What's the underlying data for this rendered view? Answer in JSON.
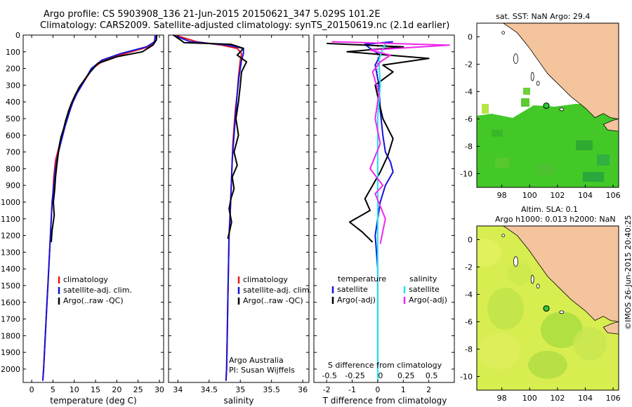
{
  "header": {
    "title_line1": "Argo profile: CS 5903908_136 21-Jun-2015 20150621_347 5.029S 101.2E",
    "title_line2": "Climatology: CARS2009. Satellite-adjusted climatology: synTS_20150619.nc (2.1d earlier)"
  },
  "colors": {
    "climatology": "#e8141c",
    "satellite": "#1414d8",
    "argo": "#000000",
    "salinity_sat": "#1ee6ee",
    "salinity_argo": "#ee28ee",
    "land": "#f4c49c",
    "sst_green": "#44c828",
    "sla_yellow": "#d8ee50"
  },
  "chart_data": [
    {
      "type": "line",
      "name": "temperature-panel",
      "xlabel": "temperature (deg C)",
      "ylabel": "",
      "xlim": [
        -2,
        31
      ],
      "ylim": [
        2080,
        0
      ],
      "xticks": [
        0,
        5,
        10,
        15,
        20,
        25,
        30
      ],
      "yticks": [
        0,
        100,
        200,
        300,
        400,
        500,
        600,
        700,
        800,
        900,
        1000,
        1100,
        1200,
        1300,
        1400,
        1500,
        1600,
        1700,
        1800,
        1900,
        2000
      ],
      "legend": [
        "climatology",
        "satellite-adj. clim.",
        "Argo(..raw -QC)"
      ],
      "series": [
        {
          "name": "climatology",
          "x": [
            29.2,
            28.8,
            27.5,
            22,
            17,
            14.3,
            13,
            11.8,
            10.6,
            9.7,
            9,
            8.4,
            7.7,
            7.1,
            6.6,
            6.1,
            5.6,
            5.4,
            5.2,
            5.1,
            5.0,
            4.8,
            4.6,
            4.4,
            4.2,
            4.0,
            3.8,
            3.6,
            3.4,
            3.2,
            3.0,
            2.8,
            2.6
          ],
          "y": [
            0,
            40,
            70,
            110,
            150,
            200,
            250,
            300,
            350,
            400,
            450,
            500,
            550,
            600,
            650,
            700,
            750,
            800,
            850,
            900,
            950,
            1000,
            1100,
            1200,
            1300,
            1400,
            1500,
            1600,
            1700,
            1800,
            1900,
            2000,
            2070
          ]
        },
        {
          "name": "satellite-adj. clim.",
          "x": [
            29.0,
            28.9,
            27,
            21,
            16.5,
            14,
            12.9,
            11.8,
            10.6,
            9.7,
            9,
            8.4,
            7.8,
            7.3,
            6.8,
            6.3,
            5.9,
            5.6,
            5.4,
            5.2,
            5.0,
            4.8,
            4.6,
            4.4,
            4.2,
            4.0,
            3.8,
            3.6,
            3.4,
            3.2,
            3.0,
            2.8,
            2.6
          ],
          "y": [
            0,
            40,
            70,
            110,
            150,
            200,
            250,
            300,
            350,
            400,
            450,
            500,
            550,
            600,
            650,
            700,
            750,
            800,
            850,
            900,
            950,
            1000,
            1100,
            1200,
            1300,
            1400,
            1500,
            1600,
            1700,
            1800,
            1900,
            2000,
            2070
          ]
        },
        {
          "name": "Argo(..raw -QC)",
          "x": [
            29.4,
            29.3,
            28.5,
            26,
            20,
            15.5,
            13.8,
            12.6,
            11.2,
            10.2,
            9.3,
            8.6,
            8.0,
            7.5,
            6.9,
            6.5,
            6.2,
            5.9,
            5.6,
            5.4,
            5.1,
            5.3,
            4.8,
            4.6
          ],
          "y": [
            0,
            30,
            60,
            100,
            130,
            170,
            220,
            260,
            310,
            360,
            410,
            460,
            510,
            560,
            610,
            660,
            720,
            780,
            850,
            930,
            1000,
            1080,
            1170,
            1240
          ]
        }
      ]
    },
    {
      "type": "line",
      "name": "salinity-panel",
      "xlabel": "salinity",
      "ylabel": "",
      "xlim": [
        33.85,
        36.1
      ],
      "ylim": [
        2080,
        0
      ],
      "xticks": [
        34,
        34.5,
        35,
        35.5,
        36
      ],
      "legend": [
        "climatology",
        "satellite-adj. clim.",
        "Argo(..raw -QC)"
      ],
      "annotation": [
        "Argo Australia",
        "PI: Susan Wijffels"
      ],
      "series": [
        {
          "name": "climatology",
          "x": [
            33.95,
            34.3,
            34.7,
            34.95,
            35.02,
            35.0,
            34.97,
            34.95,
            34.92,
            34.9,
            34.88,
            34.87,
            34.86,
            34.85,
            34.84,
            34.82,
            34.81,
            34.8,
            34.79,
            34.78,
            34.77
          ],
          "y": [
            0,
            40,
            60,
            80,
            110,
            150,
            250,
            350,
            450,
            550,
            650,
            750,
            850,
            950,
            1050,
            1200,
            1400,
            1600,
            1800,
            2000,
            2070
          ]
        },
        {
          "name": "satellite-adj. clim.",
          "x": [
            33.92,
            34.2,
            34.8,
            35.05,
            35.05,
            35.02,
            34.98,
            34.95,
            34.93,
            34.91,
            34.89,
            34.87,
            34.86,
            34.85,
            34.84,
            34.82,
            34.81,
            34.8,
            34.79,
            34.78,
            34.77
          ],
          "y": [
            0,
            40,
            60,
            80,
            110,
            150,
            250,
            350,
            450,
            550,
            650,
            750,
            850,
            950,
            1050,
            1200,
            1400,
            1600,
            1800,
            2000,
            2070
          ]
        },
        {
          "name": "Argo(..raw -QC)",
          "x": [
            33.93,
            34.1,
            34.85,
            35.05,
            34.95,
            35.1,
            35.02,
            35.0,
            34.97,
            34.93,
            34.97,
            34.9,
            34.95,
            34.87,
            34.9,
            34.85,
            34.82,
            34.86,
            34.8
          ],
          "y": [
            0,
            45,
            55,
            80,
            120,
            160,
            220,
            300,
            400,
            500,
            600,
            700,
            780,
            850,
            920,
            980,
            1040,
            1120,
            1220
          ]
        }
      ]
    },
    {
      "type": "line",
      "name": "difference-panel",
      "xlabel": "T difference from climatology",
      "top_label": "S difference from climatology",
      "xlim": [
        -2.5,
        3.0
      ],
      "ylim": [
        2080,
        0
      ],
      "xticks_T": [
        -2,
        -1,
        0,
        1,
        2
      ],
      "xticks_S_labels": [
        "-0.5",
        "-0.25",
        "0",
        "0.25",
        "0.5"
      ],
      "legend_left_title": "temperature",
      "legend_right_title": "salinity",
      "legend": [
        "satellite",
        "Argo(-adj)",
        "satellite",
        "Argo(-adj)"
      ],
      "series": [
        {
          "name": "temperature satellite",
          "x": [
            0.6,
            -0.5,
            -0.3,
            0.1,
            -0.1,
            0.05,
            0.1,
            0.2,
            0.3,
            0.5,
            0.6,
            0.3,
            0.1,
            0.0,
            -0.1,
            0.0,
            0.0,
            0.0,
            0.0
          ],
          "y": [
            40,
            55,
            80,
            120,
            180,
            300,
            450,
            600,
            700,
            760,
            820,
            900,
            1000,
            1100,
            1200,
            1400,
            1600,
            1800,
            2000
          ]
        },
        {
          "name": "temperature Argo(-adj)",
          "x": [
            -2.0,
            1.0,
            -1.2,
            2.0,
            0.2,
            0.6,
            -0.1,
            0.05,
            0.2,
            0.6,
            0.4,
            0.1,
            -0.2,
            -0.5,
            -0.3,
            -1.1,
            -0.6,
            -0.2
          ],
          "y": [
            50,
            70,
            100,
            140,
            180,
            220,
            300,
            400,
            500,
            620,
            720,
            820,
            900,
            980,
            1050,
            1120,
            1180,
            1240
          ]
        },
        {
          "name": "salinity satellite",
          "x": [
            0.3,
            0.15,
            0.05,
            0.1,
            0.0,
            0.0,
            0.0,
            0.0,
            0.0,
            0.0,
            0.0,
            0.0
          ],
          "y": [
            50,
            100,
            150,
            300,
            500,
            700,
            900,
            1100,
            1400,
            1700,
            2000,
            2070
          ]
        },
        {
          "name": "salinity Argo(-adj)",
          "x": [
            -1.8,
            2.8,
            -0.3,
            0.5,
            0.1,
            -0.2,
            0.05,
            -0.1,
            0.1,
            -0.3,
            0.2,
            -0.1,
            0.3,
            0.1
          ],
          "y": [
            40,
            60,
            90,
            120,
            160,
            220,
            350,
            500,
            650,
            800,
            900,
            950,
            1100,
            1250
          ]
        }
      ]
    }
  ],
  "maps": {
    "sst": {
      "title": "sat. SST: NaN Argo: 29.4",
      "xticks": [
        98,
        100,
        102,
        104,
        106
      ],
      "yticks": [
        0,
        -2,
        -4,
        -6,
        -8,
        -10
      ]
    },
    "sla": {
      "title_line1": "Altim. SLA: 0.1",
      "title_line2": "Argo h1000: 0.013 h2000: NaN",
      "xticks": [
        98,
        100,
        102,
        104,
        106
      ],
      "yticks": [
        0,
        -2,
        -4,
        -6,
        -8,
        -10
      ]
    },
    "argo_position": {
      "lon": 101.2,
      "lat": -5.029
    }
  },
  "footer": {
    "timestamp": "©IMOS 26-Jun-2015 20:40:25"
  }
}
